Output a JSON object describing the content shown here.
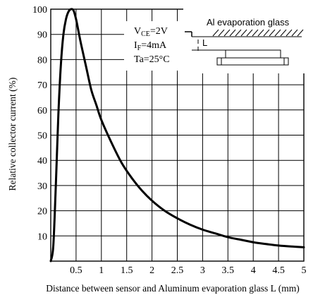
{
  "chart_data": {
    "type": "line",
    "title": "",
    "xlabel": "Distance between sensor and Aluminum evaporation glass L (mm)",
    "ylabel": "Relative collector current (%)",
    "xlim": [
      0,
      5
    ],
    "ylim": [
      0,
      100
    ],
    "x_ticks": [
      "0.5",
      "1",
      "1.5",
      "2",
      "2.5",
      "3",
      "3.5",
      "4",
      "4.5",
      "5"
    ],
    "y_ticks": [
      "10",
      "20",
      "30",
      "40",
      "50",
      "60",
      "70",
      "80",
      "90",
      "100"
    ],
    "grid": true,
    "legend": "none",
    "series": [
      {
        "x": [
          0.0,
          0.05,
          0.1,
          0.15,
          0.2,
          0.25,
          0.3,
          0.35,
          0.4,
          0.45,
          0.5,
          0.55,
          0.6,
          0.7,
          0.8,
          0.9,
          1.0,
          1.2,
          1.4,
          1.6,
          1.8,
          2.0,
          2.25,
          2.5,
          2.75,
          3.0,
          3.25,
          3.5,
          3.75,
          4.0,
          4.25,
          4.5,
          4.75,
          5.0
        ],
        "y": [
          0,
          6,
          30,
          58,
          78,
          90,
          96,
          99,
          100,
          99.5,
          96,
          91,
          86,
          77,
          68,
          62,
          56,
          47,
          39,
          33,
          28,
          24,
          20,
          17,
          14.5,
          12.5,
          11,
          9.5,
          8.5,
          7.5,
          6.8,
          6.2,
          5.8,
          5.5
        ]
      }
    ],
    "conditions": {
      "vce": {
        "main": "V",
        "sub": "CE",
        "rest": "=2V"
      },
      "if": {
        "main": "I",
        "sub": "F",
        "rest": "=4mA"
      },
      "ta": "Ta=25°C"
    },
    "inset": {
      "label": "Al evaporation glass",
      "dimension_symbol": "L"
    }
  }
}
